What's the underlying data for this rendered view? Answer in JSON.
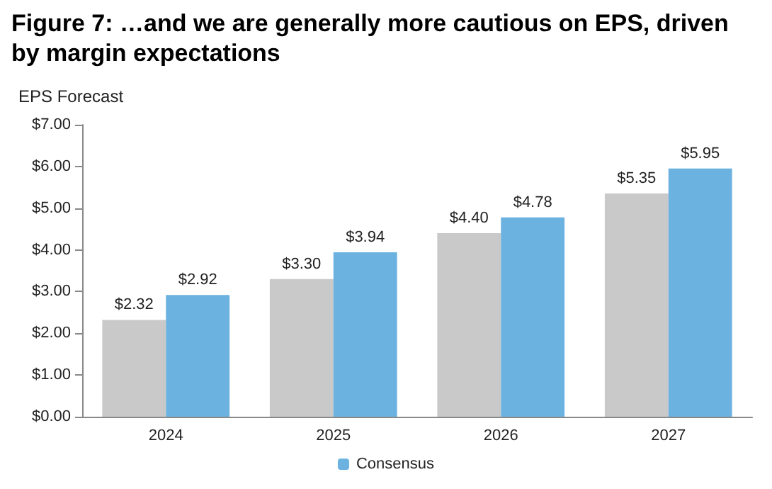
{
  "chart_data": {
    "type": "bar",
    "title": "Figure 7: …and we are generally more cautious on EPS, driven by margin expectations",
    "ylabel": "EPS Forecast",
    "categories": [
      "2024",
      "2025",
      "2026",
      "2027"
    ],
    "series": [
      {
        "color": "#c9c9c9",
        "values": [
          2.32,
          3.3,
          4.4,
          5.35
        ],
        "value_labels": [
          "$2.32",
          "$3.30",
          "$4.40",
          "$5.35"
        ]
      },
      {
        "name": "Consensus",
        "color": "#6cb2e0",
        "values": [
          2.92,
          3.94,
          4.78,
          5.95
        ],
        "value_labels": [
          "$2.92",
          "$3.94",
          "$4.78",
          "$5.95"
        ]
      }
    ],
    "ylim": [
      0,
      7
    ],
    "yticks": [
      {
        "value": 0,
        "label": "$0.00"
      },
      {
        "value": 1,
        "label": "$1.00"
      },
      {
        "value": 2,
        "label": "$2.00"
      },
      {
        "value": 3,
        "label": "$3.00"
      },
      {
        "value": 4,
        "label": "$4.00"
      },
      {
        "value": 5,
        "label": "$5.00"
      },
      {
        "value": 6,
        "label": "$6.00"
      },
      {
        "value": 7,
        "label": "$7.00"
      }
    ],
    "grid": false,
    "legend": "bottom"
  }
}
